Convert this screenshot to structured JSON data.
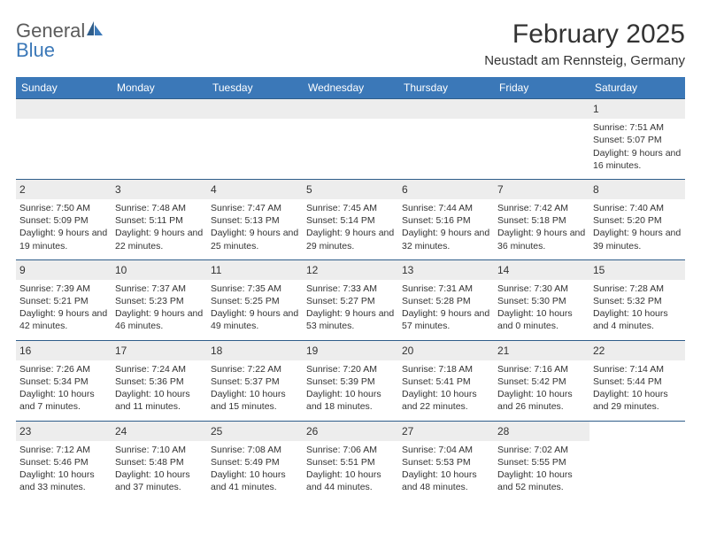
{
  "brand": {
    "part1": "General",
    "part2": "Blue"
  },
  "title": "February 2025",
  "location": "Neustadt am Rennsteig, Germany",
  "colors": {
    "header_bg": "#3b78b8",
    "daynum_bg": "#ededed",
    "row_border": "#2f5d8a",
    "text": "#333333",
    "logo_gray": "#5b5b5b"
  },
  "days_of_week": [
    "Sunday",
    "Monday",
    "Tuesday",
    "Wednesday",
    "Thursday",
    "Friday",
    "Saturday"
  ],
  "weeks": [
    [
      null,
      null,
      null,
      null,
      null,
      null,
      {
        "n": "1",
        "sunrise": "Sunrise: 7:51 AM",
        "sunset": "Sunset: 5:07 PM",
        "daylight": "Daylight: 9 hours and 16 minutes."
      }
    ],
    [
      {
        "n": "2",
        "sunrise": "Sunrise: 7:50 AM",
        "sunset": "Sunset: 5:09 PM",
        "daylight": "Daylight: 9 hours and 19 minutes."
      },
      {
        "n": "3",
        "sunrise": "Sunrise: 7:48 AM",
        "sunset": "Sunset: 5:11 PM",
        "daylight": "Daylight: 9 hours and 22 minutes."
      },
      {
        "n": "4",
        "sunrise": "Sunrise: 7:47 AM",
        "sunset": "Sunset: 5:13 PM",
        "daylight": "Daylight: 9 hours and 25 minutes."
      },
      {
        "n": "5",
        "sunrise": "Sunrise: 7:45 AM",
        "sunset": "Sunset: 5:14 PM",
        "daylight": "Daylight: 9 hours and 29 minutes."
      },
      {
        "n": "6",
        "sunrise": "Sunrise: 7:44 AM",
        "sunset": "Sunset: 5:16 PM",
        "daylight": "Daylight: 9 hours and 32 minutes."
      },
      {
        "n": "7",
        "sunrise": "Sunrise: 7:42 AM",
        "sunset": "Sunset: 5:18 PM",
        "daylight": "Daylight: 9 hours and 36 minutes."
      },
      {
        "n": "8",
        "sunrise": "Sunrise: 7:40 AM",
        "sunset": "Sunset: 5:20 PM",
        "daylight": "Daylight: 9 hours and 39 minutes."
      }
    ],
    [
      {
        "n": "9",
        "sunrise": "Sunrise: 7:39 AM",
        "sunset": "Sunset: 5:21 PM",
        "daylight": "Daylight: 9 hours and 42 minutes."
      },
      {
        "n": "10",
        "sunrise": "Sunrise: 7:37 AM",
        "sunset": "Sunset: 5:23 PM",
        "daylight": "Daylight: 9 hours and 46 minutes."
      },
      {
        "n": "11",
        "sunrise": "Sunrise: 7:35 AM",
        "sunset": "Sunset: 5:25 PM",
        "daylight": "Daylight: 9 hours and 49 minutes."
      },
      {
        "n": "12",
        "sunrise": "Sunrise: 7:33 AM",
        "sunset": "Sunset: 5:27 PM",
        "daylight": "Daylight: 9 hours and 53 minutes."
      },
      {
        "n": "13",
        "sunrise": "Sunrise: 7:31 AM",
        "sunset": "Sunset: 5:28 PM",
        "daylight": "Daylight: 9 hours and 57 minutes."
      },
      {
        "n": "14",
        "sunrise": "Sunrise: 7:30 AM",
        "sunset": "Sunset: 5:30 PM",
        "daylight": "Daylight: 10 hours and 0 minutes."
      },
      {
        "n": "15",
        "sunrise": "Sunrise: 7:28 AM",
        "sunset": "Sunset: 5:32 PM",
        "daylight": "Daylight: 10 hours and 4 minutes."
      }
    ],
    [
      {
        "n": "16",
        "sunrise": "Sunrise: 7:26 AM",
        "sunset": "Sunset: 5:34 PM",
        "daylight": "Daylight: 10 hours and 7 minutes."
      },
      {
        "n": "17",
        "sunrise": "Sunrise: 7:24 AM",
        "sunset": "Sunset: 5:36 PM",
        "daylight": "Daylight: 10 hours and 11 minutes."
      },
      {
        "n": "18",
        "sunrise": "Sunrise: 7:22 AM",
        "sunset": "Sunset: 5:37 PM",
        "daylight": "Daylight: 10 hours and 15 minutes."
      },
      {
        "n": "19",
        "sunrise": "Sunrise: 7:20 AM",
        "sunset": "Sunset: 5:39 PM",
        "daylight": "Daylight: 10 hours and 18 minutes."
      },
      {
        "n": "20",
        "sunrise": "Sunrise: 7:18 AM",
        "sunset": "Sunset: 5:41 PM",
        "daylight": "Daylight: 10 hours and 22 minutes."
      },
      {
        "n": "21",
        "sunrise": "Sunrise: 7:16 AM",
        "sunset": "Sunset: 5:42 PM",
        "daylight": "Daylight: 10 hours and 26 minutes."
      },
      {
        "n": "22",
        "sunrise": "Sunrise: 7:14 AM",
        "sunset": "Sunset: 5:44 PM",
        "daylight": "Daylight: 10 hours and 29 minutes."
      }
    ],
    [
      {
        "n": "23",
        "sunrise": "Sunrise: 7:12 AM",
        "sunset": "Sunset: 5:46 PM",
        "daylight": "Daylight: 10 hours and 33 minutes."
      },
      {
        "n": "24",
        "sunrise": "Sunrise: 7:10 AM",
        "sunset": "Sunset: 5:48 PM",
        "daylight": "Daylight: 10 hours and 37 minutes."
      },
      {
        "n": "25",
        "sunrise": "Sunrise: 7:08 AM",
        "sunset": "Sunset: 5:49 PM",
        "daylight": "Daylight: 10 hours and 41 minutes."
      },
      {
        "n": "26",
        "sunrise": "Sunrise: 7:06 AM",
        "sunset": "Sunset: 5:51 PM",
        "daylight": "Daylight: 10 hours and 44 minutes."
      },
      {
        "n": "27",
        "sunrise": "Sunrise: 7:04 AM",
        "sunset": "Sunset: 5:53 PM",
        "daylight": "Daylight: 10 hours and 48 minutes."
      },
      {
        "n": "28",
        "sunrise": "Sunrise: 7:02 AM",
        "sunset": "Sunset: 5:55 PM",
        "daylight": "Daylight: 10 hours and 52 minutes."
      },
      null
    ]
  ]
}
